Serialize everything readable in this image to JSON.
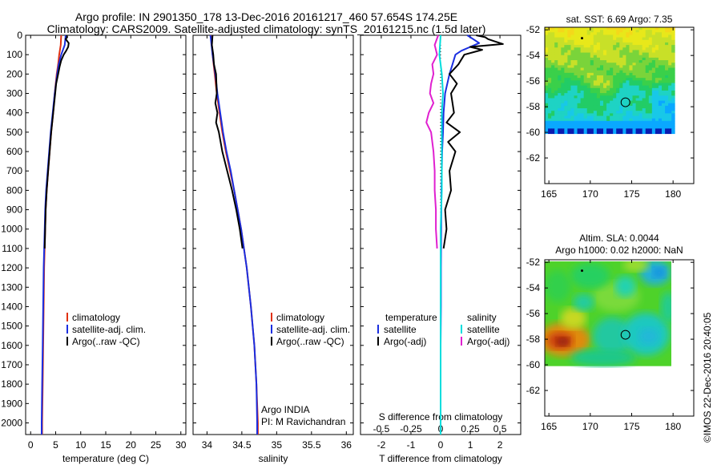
{
  "header": {
    "line1": "Argo profile: IN 2901350_178 13-Dec-2016 20161217_460 57.654S 174.25E",
    "line2": "Climatology: CARS2009. Satellite-adjusted climatology: synTS_20161215.nc (1.5d later)"
  },
  "credit": "©IMOS 22-Dec-2016 20:40:05",
  "chart_data": [
    {
      "type": "line",
      "panel": "temperature",
      "xlabel": "temperature (deg C)",
      "xlim": [
        -1,
        31
      ],
      "xticks": [
        0,
        5,
        10,
        15,
        20,
        25,
        30
      ],
      "ylim": [
        2060,
        0
      ],
      "yticks": [
        0,
        100,
        200,
        300,
        400,
        500,
        600,
        700,
        800,
        900,
        1000,
        1100,
        1200,
        1300,
        1400,
        1500,
        1600,
        1700,
        1800,
        1900,
        2000
      ],
      "legend": [
        {
          "label": "climatology",
          "color": "#e03010"
        },
        {
          "label": "satellite-adj. clim.",
          "color": "#1a2ee0"
        },
        {
          "label": "Argo(..raw -QC)",
          "color": "#000000"
        }
      ],
      "series": [
        {
          "color": "#e03010",
          "depth": [
            0,
            50,
            100,
            150,
            200,
            300,
            400,
            500,
            600,
            700,
            800,
            900,
            1000,
            1200,
            1400,
            1600,
            1800,
            2000,
            2060
          ],
          "values": [
            6.1,
            6.0,
            5.7,
            5.5,
            5.2,
            4.8,
            4.5,
            4.1,
            3.8,
            3.5,
            3.2,
            3.0,
            2.9,
            2.7,
            2.6,
            2.5,
            2.4,
            2.3,
            2.3
          ]
        },
        {
          "color": "#1a2ee0",
          "depth": [
            0,
            50,
            100,
            150,
            200,
            300,
            400,
            500,
            600,
            700,
            800,
            900,
            1000,
            1200,
            1400,
            1600,
            1800,
            2000,
            2060
          ],
          "values": [
            7.0,
            6.8,
            6.1,
            5.6,
            5.3,
            4.8,
            4.4,
            4.0,
            3.7,
            3.4,
            3.1,
            2.9,
            2.8,
            2.6,
            2.5,
            2.4,
            2.3,
            2.2,
            2.2
          ]
        },
        {
          "color": "#000000",
          "depth": [
            0,
            10,
            20,
            40,
            60,
            80,
            100,
            130,
            160,
            200,
            250,
            300,
            400,
            500,
            600,
            700,
            800,
            900,
            1000,
            1100
          ],
          "values": [
            7.2,
            7.3,
            7.0,
            7.6,
            7.5,
            7.1,
            6.6,
            6.1,
            5.8,
            5.5,
            5.1,
            4.9,
            4.5,
            4.1,
            3.8,
            3.5,
            3.2,
            3.0,
            2.9,
            2.8
          ]
        }
      ]
    },
    {
      "type": "line",
      "panel": "salinity",
      "xlabel": "salinity",
      "xlim": [
        33.8,
        36.1
      ],
      "xticks": [
        34,
        34.5,
        35,
        35.5,
        36
      ],
      "ylim": [
        2060,
        0
      ],
      "legend": [
        {
          "label": "climatology",
          "color": "#e03010"
        },
        {
          "label": "satellite-adj. clim.",
          "color": "#1a2ee0"
        },
        {
          "label": "Argo(..raw -QC)",
          "color": "#000000"
        }
      ],
      "annotation": [
        "Argo INDIA",
        "PI: M Ravichandran"
      ],
      "series": [
        {
          "color": "#e03010",
          "depth": [
            0,
            100,
            200,
            300,
            400,
            500,
            600,
            700,
            800,
            900,
            1000,
            1200,
            1400,
            1600,
            1800,
            2000,
            2060
          ],
          "values": [
            34.06,
            34.08,
            34.11,
            34.14,
            34.18,
            34.22,
            34.27,
            34.33,
            34.39,
            34.44,
            34.49,
            34.57,
            34.63,
            34.68,
            34.71,
            34.73,
            34.73
          ]
        },
        {
          "color": "#1a2ee0",
          "depth": [
            0,
            100,
            200,
            300,
            400,
            500,
            600,
            700,
            800,
            900,
            1000,
            1200,
            1400,
            1600,
            1800,
            2000,
            2060
          ],
          "values": [
            34.05,
            34.08,
            34.12,
            34.15,
            34.19,
            34.23,
            34.28,
            34.34,
            34.39,
            34.44,
            34.49,
            34.57,
            34.63,
            34.68,
            34.71,
            34.72,
            34.72
          ]
        },
        {
          "color": "#000000",
          "depth": [
            0,
            50,
            100,
            150,
            200,
            300,
            350,
            400,
            450,
            500,
            600,
            700,
            800,
            900,
            1000,
            1100
          ],
          "values": [
            34.08,
            34.07,
            34.09,
            34.1,
            34.13,
            34.14,
            34.12,
            34.15,
            34.13,
            34.17,
            34.22,
            34.29,
            34.36,
            34.42,
            34.47,
            34.51
          ]
        }
      ]
    },
    {
      "type": "line",
      "panel": "difference",
      "xlabel": "T difference from climatology",
      "xlabel_top": "S difference from climatology",
      "xlim": [
        -2.7,
        2.7
      ],
      "xticks": [
        -2,
        -1,
        0,
        1,
        2
      ],
      "xticks_salinity": [
        -0.5,
        -0.25,
        0,
        0.25,
        0.5
      ],
      "ylim": [
        2060,
        0
      ],
      "legend_temperature_title": "temperature",
      "legend_salinity_title": "salinity",
      "legend": [
        {
          "label": "satellite",
          "color": "#1a2ee0",
          "group": "temperature"
        },
        {
          "label": "Argo(-adj)",
          "color": "#000000",
          "group": "temperature"
        },
        {
          "label": "satellite",
          "color": "#00dddd",
          "group": "salinity"
        },
        {
          "label": "Argo(-adj)",
          "color": "#e020d0",
          "group": "salinity"
        }
      ],
      "series": [
        {
          "color": "#1a2ee0",
          "quantity": "T satellite",
          "depth": [
            0,
            20,
            40,
            60,
            80,
            100,
            150,
            200,
            300,
            400,
            500,
            600,
            800,
            1000,
            1200,
            1400,
            1600,
            1800,
            2000,
            2060
          ],
          "values": [
            0.9,
            1.1,
            1.3,
            1.0,
            0.7,
            0.5,
            0.4,
            0.3,
            0.15,
            0.1,
            0.08,
            0.05,
            0.03,
            0.02,
            0.01,
            0.01,
            0.0,
            0.0,
            0.0,
            0.0
          ]
        },
        {
          "color": "#000000",
          "quantity": "T Argo",
          "depth": [
            0,
            10,
            20,
            30,
            45,
            60,
            75,
            100,
            150,
            200,
            250,
            300,
            400,
            450,
            500,
            550,
            600,
            700,
            800,
            900,
            1000,
            1100
          ],
          "values": [
            1.2,
            1.5,
            1.6,
            1.8,
            2.1,
            1.0,
            1.4,
            0.8,
            0.6,
            0.3,
            0.55,
            0.35,
            0.45,
            0.2,
            0.65,
            0.25,
            0.5,
            0.3,
            0.35,
            0.15,
            0.2,
            0.1
          ]
        },
        {
          "color": "#00dddd",
          "quantity": "S satellite",
          "depth": [
            0,
            100,
            200,
            300,
            400,
            500,
            600,
            800,
            1000,
            1200,
            1500,
            1800,
            2000,
            2060
          ],
          "values": [
            0.0,
            -0.01,
            0.01,
            0.02,
            0.01,
            0.01,
            0.01,
            0.01,
            0.0,
            0.0,
            0.0,
            0.0,
            0.0,
            0.0
          ]
        },
        {
          "color": "#e020d0",
          "quantity": "S Argo",
          "depth": [
            0,
            50,
            100,
            150,
            200,
            250,
            300,
            350,
            400,
            450,
            500,
            550,
            600,
            700,
            800,
            900,
            1000,
            1100
          ],
          "values": [
            -0.02,
            -0.05,
            -0.03,
            -0.07,
            -0.06,
            -0.08,
            -0.09,
            -0.06,
            -0.1,
            -0.12,
            -0.08,
            -0.07,
            -0.06,
            -0.05,
            -0.05,
            -0.04,
            -0.04,
            -0.03
          ]
        }
      ]
    },
    {
      "type": "heatmap",
      "panel": "sst-map",
      "title": "sat. SST: 6.69  Argo: 7.35",
      "xticks": [
        165,
        170,
        175,
        180
      ],
      "yticks": [
        -52,
        -54,
        -56,
        -58,
        -60,
        -62
      ],
      "xlim": [
        164.5,
        182.5
      ],
      "ylim": [
        -64.0,
        -51.8
      ],
      "data_extent": {
        "lon": [
          164.5,
          180.2
        ],
        "lat": [
          -60.1,
          -51.8
        ]
      },
      "float_position": {
        "lon": 174.25,
        "lat": -57.654
      }
    },
    {
      "type": "heatmap",
      "panel": "sla-map",
      "title": "Altim. SLA: 0.0044",
      "subtitle": "Argo h1000: 0.02  h2000: NaN",
      "xticks": [
        165,
        170,
        175,
        180
      ],
      "yticks": [
        -52,
        -54,
        -56,
        -58,
        -60,
        -62
      ],
      "xlim": [
        164.5,
        182.5
      ],
      "ylim": [
        -64.0,
        -51.8
      ],
      "data_extent": {
        "lon": [
          164.5,
          180.2
        ],
        "lat": [
          -60.1,
          -51.8
        ]
      },
      "float_position": {
        "lon": 174.25,
        "lat": -57.654
      }
    }
  ]
}
